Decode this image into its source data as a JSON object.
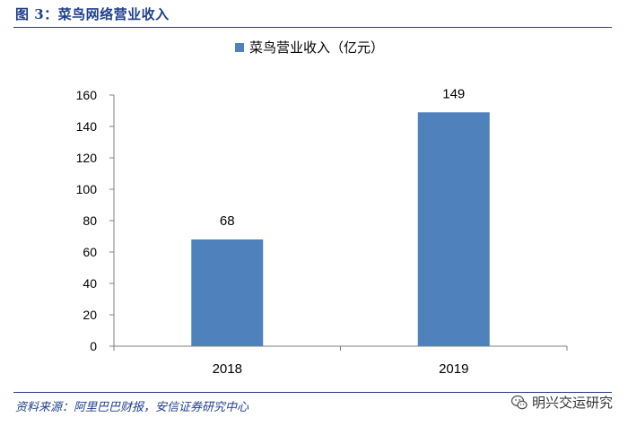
{
  "figure": {
    "title": "图 3：菜鸟网络营业收入",
    "source": "资料来源：阿里巴巴财报，安信证券研究中心"
  },
  "watermark": {
    "text": "明兴交运研究",
    "icon": "wechat-logo-icon"
  },
  "colors": {
    "accent": "#1f3f8c",
    "bar": "#4f81bd"
  },
  "chart_data": {
    "type": "bar",
    "categories": [
      "2018",
      "2019"
    ],
    "series": [
      {
        "name": "菜鸟营业收入（亿元）",
        "values": [
          68,
          149
        ]
      }
    ],
    "data_labels": [
      "68",
      "149"
    ],
    "ylim": [
      0,
      160
    ],
    "yticks": [
      0,
      20,
      40,
      60,
      80,
      100,
      120,
      140,
      160
    ],
    "ytick_labels": [
      "0",
      "20",
      "40",
      "60",
      "80",
      "100",
      "120",
      "140",
      "160"
    ],
    "legend_position": "top-center",
    "grid": false,
    "xlabel": "",
    "ylabel": ""
  }
}
